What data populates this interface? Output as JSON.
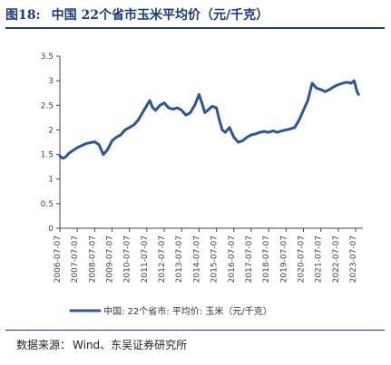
{
  "header": {
    "figure_no": "图18:",
    "title": "中国 22个省市玉米平均价（元/千克）"
  },
  "source": {
    "label": "数据来源：",
    "text": "Wind、东吴证券研究所"
  },
  "colors": {
    "line": "#2f5597",
    "title": "#1a3a78",
    "axis": "#444444"
  },
  "chart_data": {
    "type": "line",
    "x_unit": "month",
    "ylim": [
      0,
      3.5
    ],
    "y_ticks": [
      "0",
      "0.5",
      "1",
      "1.5",
      "2",
      "2.5",
      "3",
      "3.5"
    ],
    "x_ticks": [
      "2006-07-07",
      "2007-07-07",
      "2008-07-07",
      "2009-07-07",
      "2010-07-07",
      "2011-07-07",
      "2012-07-07",
      "2013-07-07",
      "2014-07-07",
      "2015-07-07",
      "2016-07-07",
      "2017-07-07",
      "2018-07-07",
      "2019-07-07",
      "2020-07-07",
      "2021-07-07",
      "2022-07-07",
      "2023-07-07"
    ],
    "legend": {
      "position": "bottom"
    },
    "grid": false,
    "series": [
      {
        "name": "中国: 22个省市: 平均价: 玉米（元/千克）",
        "points": [
          [
            "2006-07",
            1.47
          ],
          [
            "2006-09",
            1.42
          ],
          [
            "2006-11",
            1.45
          ],
          [
            "2007-01",
            1.52
          ],
          [
            "2007-04",
            1.58
          ],
          [
            "2007-07",
            1.64
          ],
          [
            "2007-10",
            1.68
          ],
          [
            "2008-01",
            1.72
          ],
          [
            "2008-04",
            1.74
          ],
          [
            "2008-07",
            1.76
          ],
          [
            "2008-10",
            1.7
          ],
          [
            "2009-01",
            1.5
          ],
          [
            "2009-04",
            1.6
          ],
          [
            "2009-07",
            1.78
          ],
          [
            "2009-10",
            1.85
          ],
          [
            "2010-01",
            1.9
          ],
          [
            "2010-04",
            2.0
          ],
          [
            "2010-07",
            2.05
          ],
          [
            "2010-10",
            2.1
          ],
          [
            "2011-01",
            2.2
          ],
          [
            "2011-04",
            2.35
          ],
          [
            "2011-07",
            2.5
          ],
          [
            "2011-09",
            2.6
          ],
          [
            "2011-11",
            2.45
          ],
          [
            "2012-01",
            2.4
          ],
          [
            "2012-04",
            2.5
          ],
          [
            "2012-07",
            2.55
          ],
          [
            "2012-10",
            2.45
          ],
          [
            "2013-01",
            2.42
          ],
          [
            "2013-04",
            2.45
          ],
          [
            "2013-07",
            2.4
          ],
          [
            "2013-10",
            2.3
          ],
          [
            "2014-01",
            2.35
          ],
          [
            "2014-04",
            2.5
          ],
          [
            "2014-07",
            2.72
          ],
          [
            "2014-09",
            2.55
          ],
          [
            "2014-11",
            2.35
          ],
          [
            "2015-01",
            2.4
          ],
          [
            "2015-04",
            2.48
          ],
          [
            "2015-07",
            2.45
          ],
          [
            "2015-09",
            2.2
          ],
          [
            "2015-11",
            2.0
          ],
          [
            "2016-01",
            1.95
          ],
          [
            "2016-04",
            2.05
          ],
          [
            "2016-07",
            1.85
          ],
          [
            "2016-10",
            1.75
          ],
          [
            "2017-01",
            1.78
          ],
          [
            "2017-04",
            1.85
          ],
          [
            "2017-07",
            1.9
          ],
          [
            "2017-10",
            1.92
          ],
          [
            "2018-01",
            1.95
          ],
          [
            "2018-04",
            1.97
          ],
          [
            "2018-07",
            1.95
          ],
          [
            "2018-10",
            1.98
          ],
          [
            "2019-01",
            1.95
          ],
          [
            "2019-04",
            1.98
          ],
          [
            "2019-07",
            2.0
          ],
          [
            "2019-10",
            2.02
          ],
          [
            "2020-01",
            2.05
          ],
          [
            "2020-04",
            2.2
          ],
          [
            "2020-07",
            2.4
          ],
          [
            "2020-10",
            2.6
          ],
          [
            "2021-01",
            2.95
          ],
          [
            "2021-04",
            2.85
          ],
          [
            "2021-07",
            2.82
          ],
          [
            "2021-10",
            2.78
          ],
          [
            "2022-01",
            2.82
          ],
          [
            "2022-04",
            2.88
          ],
          [
            "2022-07",
            2.92
          ],
          [
            "2022-10",
            2.95
          ],
          [
            "2023-01",
            2.97
          ],
          [
            "2023-04",
            2.95
          ],
          [
            "2023-06",
            3.0
          ],
          [
            "2023-08",
            2.78
          ],
          [
            "2023-09",
            2.72
          ]
        ]
      }
    ]
  }
}
